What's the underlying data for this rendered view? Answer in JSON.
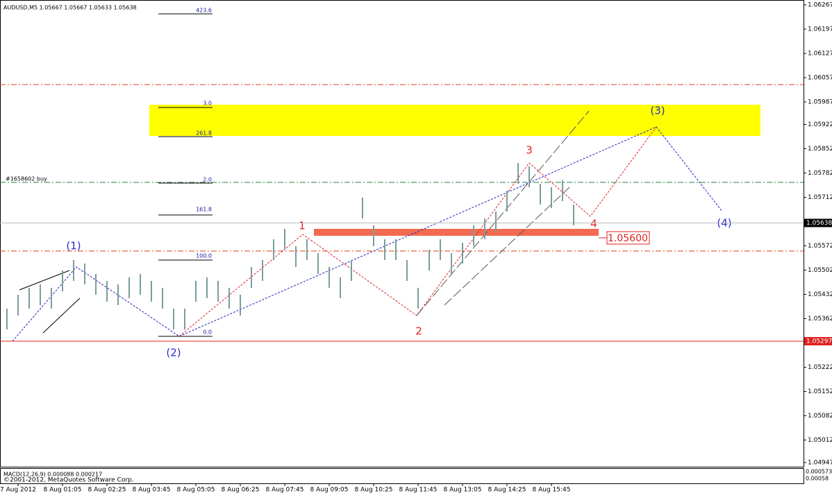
{
  "chart_data": {
    "type": "ohlc",
    "title": "AUDUSD,M5  1.05667 1.05667 1.05633 1.05638",
    "categories": [
      null,
      "7 Aug 2012",
      null,
      null,
      null,
      "8 Aug 01:05",
      null,
      null,
      null,
      "8 Aug 02:25",
      null,
      null,
      null,
      "8 Aug 03:45",
      null,
      null,
      null,
      "8 Aug 05:05",
      null,
      null,
      null,
      "8 Aug 06:25",
      null,
      null,
      null,
      "8 Aug 07:45",
      null,
      null,
      null,
      "8 Aug 09:05",
      null,
      null,
      null,
      "8 Aug 10:25",
      null,
      null,
      null,
      "8 Aug 11:45",
      null,
      null,
      null,
      "8 Aug 13:05",
      null,
      null,
      null,
      "8 Aug 14:25",
      null,
      null,
      null,
      "8 Aug 15:45",
      null,
      null
    ],
    "high": [
      1.05391,
      1.05431,
      1.05451,
      1.05461,
      1.05451,
      1.05501,
      1.05531,
      1.05521,
      1.05491,
      1.05471,
      1.05461,
      1.05481,
      1.05491,
      1.05471,
      1.05451,
      1.05391,
      1.05391,
      1.05471,
      1.05481,
      1.05471,
      1.05451,
      1.05431,
      1.05511,
      1.05531,
      1.05591,
      1.05621,
      1.05571,
      1.05591,
      1.05551,
      1.05511,
      1.05481,
      1.05531,
      1.05711,
      1.05631,
      1.05591,
      1.05591,
      1.05531,
      1.05451,
      1.05561,
      1.05591,
      1.05551,
      1.05581,
      1.05631,
      1.05651,
      1.05671,
      1.05731,
      1.05811,
      1.05801,
      1.05751,
      1.05741,
      1.05761,
      1.05691
    ],
    "low": [
      1.05331,
      1.05371,
      1.05391,
      1.05401,
      1.05391,
      1.05441,
      1.05471,
      1.05461,
      1.05431,
      1.05411,
      1.05401,
      1.05421,
      1.05431,
      1.05411,
      1.05391,
      1.05331,
      1.05331,
      1.05411,
      1.05421,
      1.05411,
      1.05391,
      1.05371,
      1.05451,
      1.05471,
      1.05531,
      1.05561,
      1.05511,
      1.05531,
      1.05491,
      1.05451,
      1.05421,
      1.05471,
      1.05651,
      1.05571,
      1.05531,
      1.05531,
      1.05471,
      1.05391,
      1.05501,
      1.05531,
      1.05491,
      1.05521,
      1.05571,
      1.05591,
      1.05611,
      1.05671,
      1.05751,
      1.05741,
      1.05691,
      1.05681,
      1.05701,
      1.05631
    ],
    "color": "#7a9c9c",
    "ylim": [
      1.04935,
      1.06281
    ],
    "yticks": [
      1.06267,
      1.06197,
      1.06127,
      1.06057,
      1.05987,
      1.05922,
      1.05852,
      1.05782,
      1.05712,
      1.05572,
      1.05502,
      1.05432,
      1.05362,
      1.05222,
      1.05152,
      1.05082,
      1.05012,
      1.04947
    ],
    "current_price": 1.05638,
    "support_price": 1.05297,
    "fib_levels": [
      "423.6",
      "3.0",
      "261.8",
      "2.0",
      "161.8",
      "100.0",
      "0.0"
    ],
    "wave_labels": [
      "(1)",
      "(2)",
      "(3)",
      "(4)",
      "1",
      "2",
      "3",
      "4"
    ],
    "order_label": "#1658602 buy",
    "target_label": "1.05600",
    "indicator_label": "MACD(12,26,9) 0.000088 0.000217",
    "copyright": "©2001-2012, MetaQuotes Software Corp.",
    "macd_axis_labels": [
      "0.000573",
      "0.00058"
    ]
  }
}
